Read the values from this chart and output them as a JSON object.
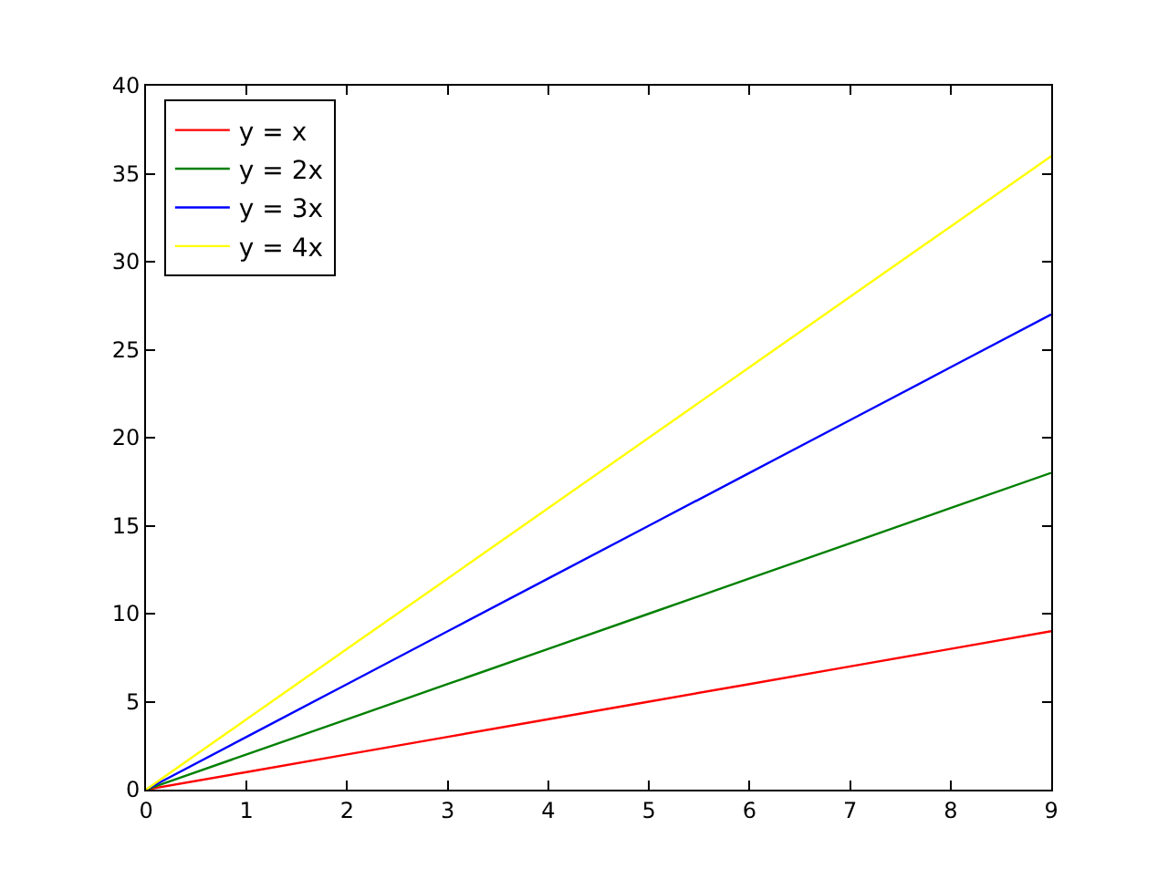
{
  "chart_data": {
    "type": "line",
    "x": [
      0,
      1,
      2,
      3,
      4,
      5,
      6,
      7,
      8,
      9
    ],
    "series": [
      {
        "name": "y = x",
        "color": "#ff0000",
        "values": [
          0,
          1,
          2,
          3,
          4,
          5,
          6,
          7,
          8,
          9
        ]
      },
      {
        "name": "y = 2x",
        "color": "#008000",
        "values": [
          0,
          2,
          4,
          6,
          8,
          10,
          12,
          14,
          16,
          18
        ]
      },
      {
        "name": "y = 3x",
        "color": "#0000ff",
        "values": [
          0,
          3,
          6,
          9,
          12,
          15,
          18,
          21,
          24,
          27
        ]
      },
      {
        "name": "y = 4x",
        "color": "#ffff00",
        "values": [
          0,
          4,
          8,
          12,
          16,
          20,
          24,
          28,
          32,
          36
        ]
      }
    ],
    "xlim": [
      0,
      9
    ],
    "xticks": [
      0,
      1,
      2,
      3,
      4,
      5,
      6,
      7,
      8,
      9
    ],
    "ylim": [
      0,
      40
    ],
    "yticks": [
      0,
      5,
      10,
      15,
      20,
      25,
      30,
      35,
      40
    ],
    "legend": "top left",
    "marker": "none",
    "line_style": "solid"
  }
}
